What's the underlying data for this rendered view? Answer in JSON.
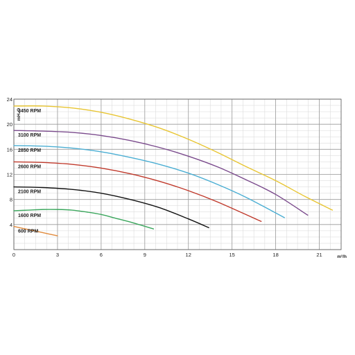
{
  "chart_data": {
    "type": "line",
    "title": "",
    "xlabel": "m³/h",
    "ylabel": "mH₂O",
    "xlim": [
      0,
      22.5
    ],
    "ylim": [
      0,
      24
    ],
    "x_ticks": [
      0,
      3,
      6,
      9,
      12,
      15,
      18,
      21
    ],
    "y_ticks": [
      0,
      4,
      8,
      12,
      16,
      20,
      24
    ],
    "x_tick_labels": [
      "0",
      "3",
      "6",
      "9",
      "12",
      "15",
      "18",
      "21"
    ],
    "y_tick_labels": [
      "",
      "4",
      "8",
      "12",
      "16",
      "20",
      "24"
    ],
    "grid": true,
    "legend": "inline labels",
    "series": [
      {
        "name": "3450 RPM",
        "color": "#e8c532",
        "x": [
          0,
          2,
          4,
          6,
          8,
          10,
          12,
          14,
          16,
          18,
          20,
          21.9
        ],
        "y": [
          22.9,
          22.9,
          22.6,
          21.9,
          20.8,
          19.4,
          17.6,
          15.5,
          13.2,
          11.0,
          8.5,
          6.3
        ]
      },
      {
        "name": "3100 RPM",
        "color": "#7a4a8c",
        "x": [
          0,
          2,
          4,
          6,
          8,
          10,
          12,
          14,
          16,
          18,
          20.2
        ],
        "y": [
          19.0,
          18.9,
          18.7,
          18.2,
          17.4,
          16.3,
          14.9,
          13.2,
          11.1,
          8.8,
          5.5
        ]
      },
      {
        "name": "2850 RPM",
        "color": "#4aaed3",
        "x": [
          0,
          2,
          4,
          6,
          8,
          10,
          12,
          14,
          16,
          18.6
        ],
        "y": [
          16.6,
          16.5,
          16.2,
          15.6,
          14.7,
          13.6,
          12.2,
          10.4,
          8.3,
          5.1
        ]
      },
      {
        "name": "2600 RPM",
        "color": "#c0392b",
        "x": [
          0,
          2,
          4,
          6,
          8,
          10,
          12,
          14,
          17.0
        ],
        "y": [
          14.0,
          13.9,
          13.6,
          13.0,
          12.1,
          10.9,
          9.4,
          7.6,
          4.5
        ]
      },
      {
        "name": "2100 RPM",
        "color": "#111111",
        "x": [
          0,
          2,
          4,
          6,
          8,
          10,
          12,
          13.4
        ],
        "y": [
          10.0,
          9.9,
          9.6,
          9.0,
          8.0,
          6.7,
          4.9,
          3.5
        ]
      },
      {
        "name": "1600 RPM",
        "color": "#3aa65c",
        "x": [
          0,
          1,
          2,
          3,
          4,
          5,
          6,
          7,
          8,
          9.6
        ],
        "y": [
          6.2,
          6.3,
          6.4,
          6.4,
          6.3,
          6.0,
          5.6,
          5.0,
          4.4,
          3.3
        ]
      },
      {
        "name": "600 RPM",
        "color": "#e08a3c",
        "x": [
          0,
          1,
          2,
          3.0
        ],
        "y": [
          3.7,
          3.2,
          2.7,
          2.2
        ]
      }
    ]
  }
}
